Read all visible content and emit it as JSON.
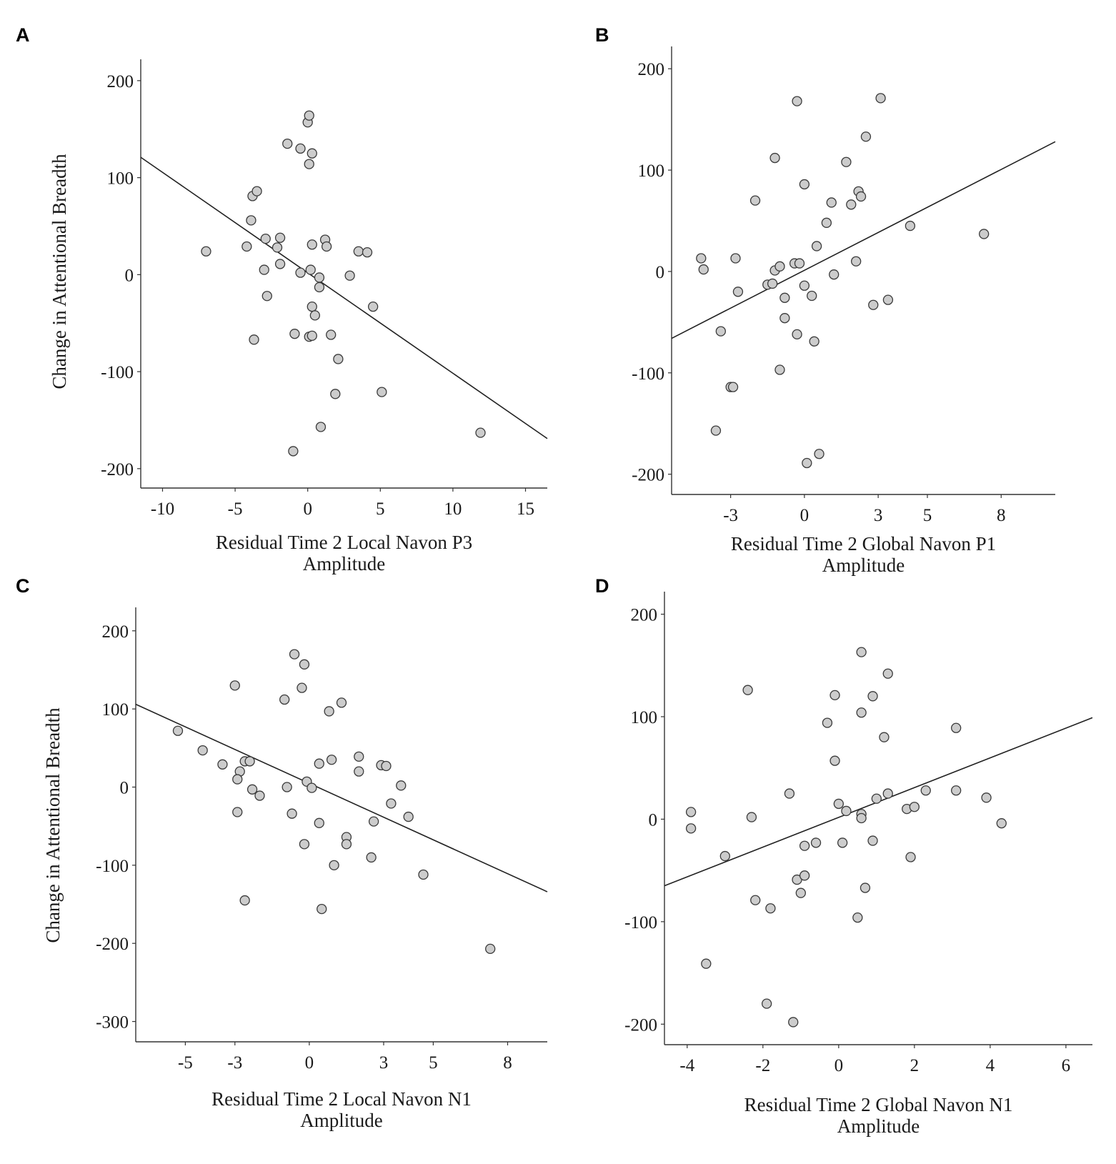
{
  "chart_data": [
    {
      "panel": "A",
      "type": "scatter",
      "xlabel": [
        "Residual Time 2 Local Navon P3",
        "Amplitude"
      ],
      "ylabel": "Change in Attentional Breadth",
      "xlim": [
        -11.5,
        16.5
      ],
      "ylim": [
        -220,
        222
      ],
      "xticks": [
        -10,
        -5,
        0,
        5,
        10,
        15
      ],
      "yticks": [
        -200,
        -100,
        0,
        100,
        200
      ],
      "fit_line": [
        [
          -11.5,
          121
        ],
        [
          16.5,
          -169
        ]
      ],
      "points": [
        [
          -7,
          24
        ],
        [
          -4.2,
          29
        ],
        [
          -3.9,
          56
        ],
        [
          -3.8,
          81
        ],
        [
          -3.5,
          86
        ],
        [
          -3.7,
          -67
        ],
        [
          -3,
          5
        ],
        [
          -2.9,
          37
        ],
        [
          -2.8,
          -22
        ],
        [
          -2.1,
          28
        ],
        [
          -1.9,
          38
        ],
        [
          -1.9,
          11
        ],
        [
          -1.4,
          135
        ],
        [
          -0.5,
          130
        ],
        [
          -0.5,
          2
        ],
        [
          -0.9,
          -61
        ],
        [
          -1,
          -182
        ],
        [
          0,
          157
        ],
        [
          0.1,
          164
        ],
        [
          0.3,
          125
        ],
        [
          0.1,
          114
        ],
        [
          0.2,
          5
        ],
        [
          0.1,
          -64
        ],
        [
          0.3,
          -63
        ],
        [
          0.3,
          -33
        ],
        [
          0.5,
          -42
        ],
        [
          0.3,
          31
        ],
        [
          0.8,
          -3
        ],
        [
          0.8,
          -13
        ],
        [
          0.9,
          -157
        ],
        [
          1.2,
          36
        ],
        [
          1.3,
          29
        ],
        [
          1.6,
          -62
        ],
        [
          1.9,
          -123
        ],
        [
          2.1,
          -87
        ],
        [
          2.9,
          -1
        ],
        [
          3.5,
          24
        ],
        [
          4.1,
          23
        ],
        [
          4.5,
          -33
        ],
        [
          5.1,
          -121
        ],
        [
          11.9,
          -163
        ]
      ]
    },
    {
      "panel": "B",
      "type": "scatter",
      "xlabel": [
        "Residual Time 2 Global Navon P1",
        "Amplitude"
      ],
      "ylabel": "",
      "xlim": [
        -5.4,
        10.2
      ],
      "ylim": [
        -220,
        222
      ],
      "xticks": [
        -3,
        0,
        3,
        5,
        8
      ],
      "yticks": [
        -200,
        -100,
        0,
        100,
        200
      ],
      "fit_line": [
        [
          -5.4,
          -66
        ],
        [
          10.2,
          128
        ]
      ],
      "points": [
        [
          -4.2,
          13
        ],
        [
          -4.1,
          2
        ],
        [
          -3.4,
          -59
        ],
        [
          -3.6,
          -157
        ],
        [
          -3,
          -114
        ],
        [
          -2.9,
          -114
        ],
        [
          -2.8,
          13
        ],
        [
          -2.7,
          -20
        ],
        [
          -2,
          70
        ],
        [
          -1.5,
          -13
        ],
        [
          -1.3,
          -12
        ],
        [
          -1.2,
          112
        ],
        [
          -1.2,
          1
        ],
        [
          -1,
          5
        ],
        [
          -1,
          -97
        ],
        [
          -0.8,
          -46
        ],
        [
          -0.8,
          -26
        ],
        [
          -0.4,
          8
        ],
        [
          -0.3,
          168
        ],
        [
          -0.3,
          -62
        ],
        [
          -0.2,
          8
        ],
        [
          0,
          86
        ],
        [
          0,
          -14
        ],
        [
          0.1,
          -189
        ],
        [
          0.3,
          -24
        ],
        [
          0.4,
          -69
        ],
        [
          0.5,
          25
        ],
        [
          0.6,
          -180
        ],
        [
          0.9,
          48
        ],
        [
          1.1,
          68
        ],
        [
          1.2,
          -3
        ],
        [
          1.7,
          108
        ],
        [
          1.9,
          66
        ],
        [
          2.1,
          10
        ],
        [
          2.2,
          79
        ],
        [
          2.3,
          74
        ],
        [
          2.5,
          133
        ],
        [
          2.8,
          -33
        ],
        [
          3.1,
          171
        ],
        [
          3.4,
          -28
        ],
        [
          4.3,
          45
        ],
        [
          7.3,
          37
        ]
      ]
    },
    {
      "panel": "C",
      "type": "scatter",
      "xlabel": [
        "Residual Time 2 Local Navon N1",
        "Amplitude"
      ],
      "ylabel": "Change in Attentional Breadth",
      "xlim": [
        -7,
        9.6
      ],
      "ylim": [
        -326,
        230
      ],
      "xticks": [
        -5,
        -3,
        0,
        3,
        5,
        8
      ],
      "yticks": [
        -300,
        -200,
        -100,
        0,
        100,
        200
      ],
      "fit_line": [
        [
          -7,
          106
        ],
        [
          9.6,
          -134
        ]
      ],
      "points": [
        [
          -5.3,
          72
        ],
        [
          -4.3,
          47
        ],
        [
          -3.5,
          29
        ],
        [
          -2.8,
          20
        ],
        [
          -2.6,
          33
        ],
        [
          -2.4,
          33
        ],
        [
          -2.3,
          -3
        ],
        [
          -3,
          130
        ],
        [
          -2.9,
          -32
        ],
        [
          -2.9,
          10
        ],
        [
          -2.6,
          -145
        ],
        [
          -2,
          -11
        ],
        [
          -1,
          112
        ],
        [
          -0.9,
          0
        ],
        [
          -0.7,
          -34
        ],
        [
          -0.6,
          170
        ],
        [
          -0.3,
          127
        ],
        [
          -0.2,
          157
        ],
        [
          -0.1,
          7
        ],
        [
          0.1,
          -1
        ],
        [
          -0.2,
          -73
        ],
        [
          0.4,
          30
        ],
        [
          0.4,
          -46
        ],
        [
          0.5,
          -156
        ],
        [
          0.8,
          97
        ],
        [
          0.9,
          35
        ],
        [
          1,
          -100
        ],
        [
          1.3,
          108
        ],
        [
          1.5,
          -64
        ],
        [
          1.5,
          -73
        ],
        [
          2,
          39
        ],
        [
          2,
          20
        ],
        [
          2.5,
          -90
        ],
        [
          2.6,
          -44
        ],
        [
          2.9,
          28
        ],
        [
          3.1,
          27
        ],
        [
          3.3,
          -21
        ],
        [
          3.7,
          2
        ],
        [
          4,
          -38
        ],
        [
          4.6,
          -112
        ],
        [
          7.3,
          -207
        ]
      ]
    },
    {
      "panel": "D",
      "type": "scatter",
      "xlabel": [
        "Residual Time 2 Global Navon N1",
        "Amplitude"
      ],
      "ylabel": "",
      "xlim": [
        -4.6,
        6.7
      ],
      "ylim": [
        -220,
        222
      ],
      "xticks": [
        -4,
        -2,
        0,
        2,
        4,
        6
      ],
      "yticks": [
        -200,
        -100,
        0,
        100,
        200
      ],
      "fit_line": [
        [
          -4.6,
          -65
        ],
        [
          6.7,
          99
        ]
      ],
      "points": [
        [
          -3.9,
          7
        ],
        [
          -3.9,
          -9
        ],
        [
          -3.5,
          -141
        ],
        [
          -3,
          -36
        ],
        [
          -2.4,
          126
        ],
        [
          -2.3,
          2
        ],
        [
          -2.2,
          -79
        ],
        [
          -1.9,
          -180
        ],
        [
          -1.8,
          -87
        ],
        [
          -1.3,
          25
        ],
        [
          -1.2,
          -198
        ],
        [
          -1.1,
          -59
        ],
        [
          -1,
          -72
        ],
        [
          -0.9,
          -55
        ],
        [
          -0.9,
          -26
        ],
        [
          -0.6,
          -23
        ],
        [
          -0.3,
          94
        ],
        [
          -0.1,
          121
        ],
        [
          -0.1,
          57
        ],
        [
          0,
          15
        ],
        [
          0.1,
          -23
        ],
        [
          0.2,
          8
        ],
        [
          0.6,
          5
        ],
        [
          0.5,
          -96
        ],
        [
          0.6,
          1
        ],
        [
          0.6,
          104
        ],
        [
          0.6,
          163
        ],
        [
          0.7,
          -67
        ],
        [
          0.9,
          120
        ],
        [
          0.9,
          -21
        ],
        [
          1,
          20
        ],
        [
          1.2,
          80
        ],
        [
          1.3,
          25
        ],
        [
          1.3,
          142
        ],
        [
          1.8,
          10
        ],
        [
          1.9,
          -37
        ],
        [
          2,
          12
        ],
        [
          2.3,
          28
        ],
        [
          3.1,
          28
        ],
        [
          3.1,
          89
        ],
        [
          3.9,
          21
        ],
        [
          4.3,
          -4
        ]
      ]
    }
  ]
}
